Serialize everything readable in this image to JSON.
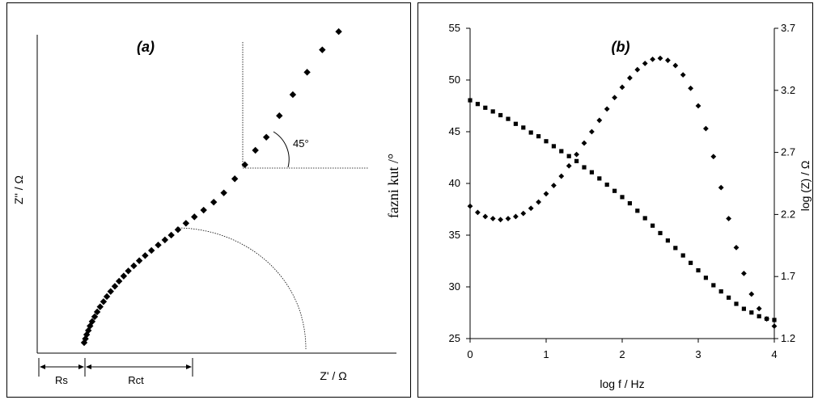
{
  "chart_data": [
    {
      "type": "scatter",
      "title": "(a)",
      "xlabel": "Z' / Ω",
      "ylabel": "Z'' / Ω",
      "angle_label": "45°",
      "rs_label": "Rs",
      "rct_label": "Rct",
      "marker": "diamond",
      "series": [
        {
          "points": [
            [
              0.0,
              0.0
            ],
            [
              0.3,
              1.2
            ],
            [
              0.6,
              2.5
            ],
            [
              1.0,
              3.8
            ],
            [
              1.4,
              5.2
            ],
            [
              1.9,
              6.6
            ],
            [
              2.5,
              8.1
            ],
            [
              3.1,
              9.6
            ],
            [
              3.8,
              11.2
            ],
            [
              4.6,
              12.8
            ],
            [
              5.4,
              14.4
            ],
            [
              6.3,
              16.0
            ],
            [
              7.3,
              17.6
            ],
            [
              8.3,
              19.2
            ],
            [
              9.4,
              20.8
            ],
            [
              10.5,
              22.4
            ],
            [
              11.8,
              24.0
            ],
            [
              13.1,
              25.6
            ],
            [
              14.5,
              27.2
            ],
            [
              16.0,
              28.8
            ],
            [
              17.6,
              30.5
            ],
            [
              19.2,
              32.1
            ],
            [
              20.7,
              33.6
            ],
            [
              22.3,
              35.3
            ],
            [
              24.2,
              37.3
            ],
            [
              26.2,
              39.3
            ],
            [
              28.4,
              41.4
            ],
            [
              30.8,
              43.9
            ],
            [
              33.2,
              46.8
            ],
            [
              35.8,
              51.2
            ],
            [
              38.2,
              55.6
            ],
            [
              40.7,
              60.1
            ],
            [
              43.3,
              64.2
            ],
            [
              46.4,
              70.9
            ],
            [
              49.6,
              77.5
            ],
            [
              53.0,
              84.5
            ],
            [
              56.6,
              91.5
            ],
            [
              60.5,
              97.2
            ]
          ]
        }
      ]
    },
    {
      "type": "scatter",
      "title": "(b)",
      "xlabel": "log f / Hz",
      "ylabel": "fazni kut /°",
      "y2label": "log (Z) / Ω",
      "x_ticks": [
        0,
        1,
        2,
        3,
        4
      ],
      "y_ticks": [
        25,
        30,
        35,
        40,
        45,
        50,
        55
      ],
      "y2_ticks": [
        1.2,
        1.7,
        2.2,
        2.7,
        3.2,
        3.7
      ],
      "xlim": [
        0,
        4
      ],
      "ylim": [
        25,
        55
      ],
      "y2lim": [
        1.2,
        3.7
      ],
      "series": [
        {
          "axis": "left",
          "marker": "diamond",
          "x": [
            0.0,
            0.1,
            0.2,
            0.3,
            0.4,
            0.5,
            0.6,
            0.7,
            0.8,
            0.9,
            1.0,
            1.1,
            1.2,
            1.3,
            1.4,
            1.5,
            1.6,
            1.7,
            1.8,
            1.9,
            2.0,
            2.1,
            2.2,
            2.3,
            2.4,
            2.5,
            2.6,
            2.7,
            2.8,
            2.9,
            3.0,
            3.1,
            3.2,
            3.3,
            3.4,
            3.5,
            3.6,
            3.7,
            3.8,
            3.9,
            4.0
          ],
          "y": [
            37.8,
            37.2,
            36.8,
            36.6,
            36.5,
            36.6,
            36.8,
            37.1,
            37.6,
            38.2,
            39.0,
            39.8,
            40.7,
            41.7,
            42.8,
            43.9,
            45.0,
            46.1,
            47.2,
            48.3,
            49.3,
            50.2,
            51.0,
            51.6,
            52.0,
            52.1,
            51.9,
            51.4,
            50.5,
            49.2,
            47.5,
            45.3,
            42.6,
            39.6,
            36.6,
            33.8,
            31.3,
            29.3,
            27.9,
            26.9,
            26.2
          ]
        },
        {
          "axis": "right",
          "marker": "square",
          "x": [
            0.0,
            0.1,
            0.2,
            0.3,
            0.4,
            0.5,
            0.6,
            0.7,
            0.8,
            0.9,
            1.0,
            1.1,
            1.2,
            1.3,
            1.4,
            1.5,
            1.6,
            1.7,
            1.8,
            1.9,
            2.0,
            2.1,
            2.2,
            2.3,
            2.4,
            2.5,
            2.6,
            2.7,
            2.8,
            2.9,
            3.0,
            3.1,
            3.2,
            3.3,
            3.4,
            3.5,
            3.6,
            3.7,
            3.8,
            3.9,
            4.0
          ],
          "y": [
            3.12,
            3.09,
            3.06,
            3.03,
            3.0,
            2.97,
            2.93,
            2.9,
            2.86,
            2.83,
            2.79,
            2.75,
            2.71,
            2.67,
            2.63,
            2.58,
            2.54,
            2.49,
            2.44,
            2.39,
            2.34,
            2.29,
            2.23,
            2.17,
            2.11,
            2.05,
            1.99,
            1.93,
            1.87,
            1.81,
            1.75,
            1.69,
            1.63,
            1.58,
            1.53,
            1.48,
            1.44,
            1.41,
            1.38,
            1.36,
            1.35
          ]
        }
      ]
    }
  ]
}
